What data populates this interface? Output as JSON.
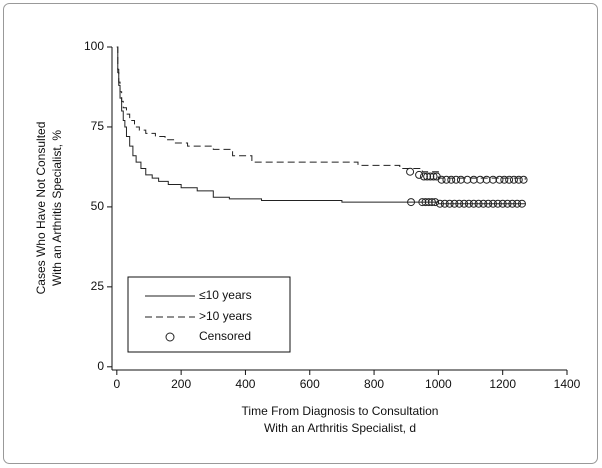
{
  "chart_data": {
    "type": "step",
    "y_label": [
      "Cases Who Have Not Consulted",
      "With an Arthritis Specialist, %"
    ],
    "x_label": [
      "Time From Diagnosis to Consultation",
      "With an Arthritis Specialist, d"
    ],
    "xlim": [
      -15,
      1400
    ],
    "xticks": [
      0,
      200,
      400,
      600,
      800,
      1000,
      1200,
      1400
    ],
    "ylim": [
      -1,
      100
    ],
    "yticks": [
      0,
      25,
      50,
      75,
      100
    ],
    "series": [
      {
        "name": "≤10 years",
        "color": "#222222",
        "dash": "none",
        "x": [
          0,
          3,
          6,
          10,
          15,
          20,
          25,
          30,
          40,
          50,
          60,
          75,
          90,
          110,
          130,
          160,
          200,
          250,
          300,
          350,
          450,
          700,
          900,
          1000,
          1270
        ],
        "values": [
          100,
          92,
          88,
          84,
          80,
          77,
          75,
          72,
          69,
          66,
          64,
          62,
          60,
          59,
          58,
          57,
          56,
          55,
          53,
          52.5,
          52,
          51.5,
          51.5,
          51,
          51
        ]
      },
      {
        "name": ">10 years",
        "color": "#222222",
        "dash": "7 4",
        "x": [
          0,
          3,
          6,
          10,
          15,
          20,
          30,
          40,
          55,
          70,
          90,
          120,
          150,
          180,
          220,
          300,
          360,
          420,
          500,
          750,
          880,
          950,
          1000,
          1270
        ],
        "values": [
          100,
          93,
          89,
          86,
          83,
          81,
          79,
          77,
          75,
          74,
          73,
          72,
          71,
          70,
          69,
          68,
          66,
          64,
          64,
          63,
          62,
          61,
          59,
          58.5
        ]
      },
      {
        "name": "Censored",
        "color": "#222222",
        "marker": "circle",
        "x": [
          912,
          940,
          955,
          965,
          975,
          985,
          995,
          1010,
          1025,
          1040,
          1055,
          1070,
          1090,
          1110,
          1130,
          1150,
          1170,
          1190,
          1205,
          1220,
          1235,
          1250,
          1265,
          915,
          950,
          960,
          970,
          980,
          990,
          1005,
          1020,
          1035,
          1050,
          1065,
          1080,
          1095,
          1110,
          1125,
          1140,
          1155,
          1170,
          1185,
          1200,
          1215,
          1230,
          1245,
          1260
        ],
        "values": [
          61,
          60,
          59.5,
          59.5,
          59.5,
          59.5,
          59.5,
          58.5,
          58.5,
          58.5,
          58.5,
          58.5,
          58.5,
          58.5,
          58.5,
          58.5,
          58.5,
          58.5,
          58.5,
          58.5,
          58.5,
          58.5,
          58.5,
          51.5,
          51.5,
          51.5,
          51.5,
          51.5,
          51.5,
          51,
          51,
          51,
          51,
          51,
          51,
          51,
          51,
          51,
          51,
          51,
          51,
          51,
          51,
          51,
          51,
          51,
          51
        ]
      }
    ]
  }
}
